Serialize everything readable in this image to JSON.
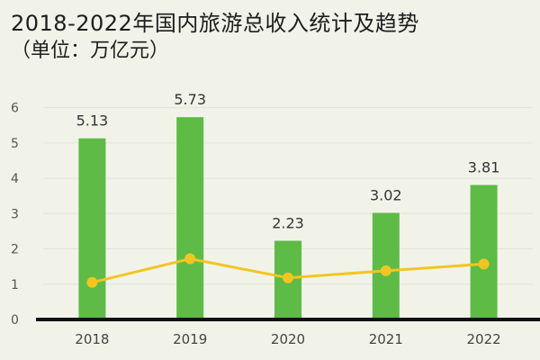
{
  "chart_data": {
    "type": "bar",
    "title": "2018-2022年国内旅游总收入统计及趋势",
    "subtitle": "（单位：万亿元）",
    "categories": [
      "2018",
      "2019",
      "2020",
      "2021",
      "2022"
    ],
    "yticks": [
      0,
      1,
      2,
      3,
      4,
      5,
      6
    ],
    "ylim": [
      0,
      6.5
    ],
    "series": [
      {
        "type": "bar",
        "values": [
          5.13,
          5.73,
          2.23,
          3.02,
          3.81
        ],
        "color": "#5dbb46",
        "show_labels": true
      },
      {
        "type": "line",
        "values": [
          1.05,
          1.72,
          1.18,
          1.38,
          1.57
        ],
        "color": "#f2c521"
      }
    ],
    "grid": true,
    "legend": "none"
  }
}
